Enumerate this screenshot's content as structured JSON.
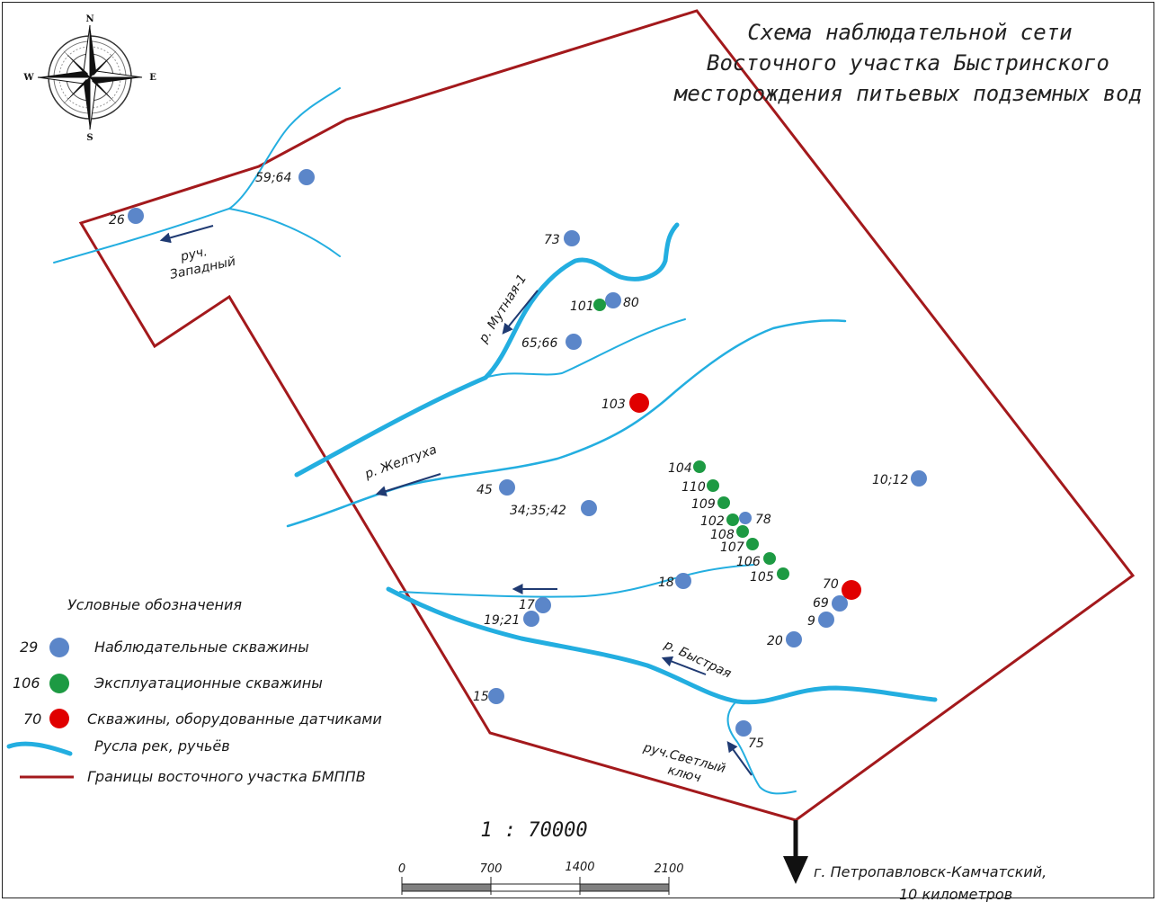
{
  "title": {
    "line1": "Схема наблюдательной сети",
    "line2": "Восточного участка Быстринского",
    "line3": "месторождения питьевых подземных вод"
  },
  "compass": {
    "n": "N",
    "s": "S",
    "w": "W",
    "e": "E"
  },
  "colors": {
    "observation": "#5b86c9",
    "production": "#1d9a43",
    "sensor": "#e00000",
    "river": "#23aee0",
    "boundary": "#a3191c",
    "flow_arrow": "#1f3a72"
  },
  "rivers": {
    "zapadny_1": "руч.",
    "zapadny_2": "Западный",
    "mutnaya": "р. Мутная-1",
    "zheltukha": "р. Желтуха",
    "bystraya": "р. Быстрая",
    "svetly_1": "руч.Светлый",
    "svetly_2": "ключ"
  },
  "wells": {
    "w26": "26",
    "w59": "59;64",
    "w73": "73",
    "w80": "80",
    "w101": "101",
    "w65": "65;66",
    "w103": "103",
    "w104": "104",
    "w110": "110",
    "w109": "109",
    "w102": "102",
    "w78": "78",
    "w108": "108",
    "w107": "107",
    "w106": "106",
    "w105": "105",
    "w10": "10;12",
    "w45": "45",
    "w34": "34;35;42",
    "w18": "18",
    "w17": "17",
    "w19": "19;21",
    "w70": "70",
    "w69": "69",
    "w9": "9",
    "w20": "20",
    "w15": "15",
    "w75": "75"
  },
  "legend": {
    "title": "Условные обозначения",
    "obs_num": "29",
    "obs_label": "Наблюдательные скважины",
    "prod_num": "106",
    "prod_label": "Эксплуатационные скважины",
    "sensor_num": "70",
    "sensor_label": "Скважины, оборудованные датчиками",
    "river_label": "Русла рек, ручьёв",
    "boundary_label": "Границы восточного участка БМППВ"
  },
  "scale": {
    "ratio": "1 : 70000",
    "t0": "0",
    "t1": "700",
    "t2": "1400",
    "t3": "2100"
  },
  "direction": {
    "line1": "г. Петропавловск-Камчатский,",
    "line2": "10 километров"
  }
}
